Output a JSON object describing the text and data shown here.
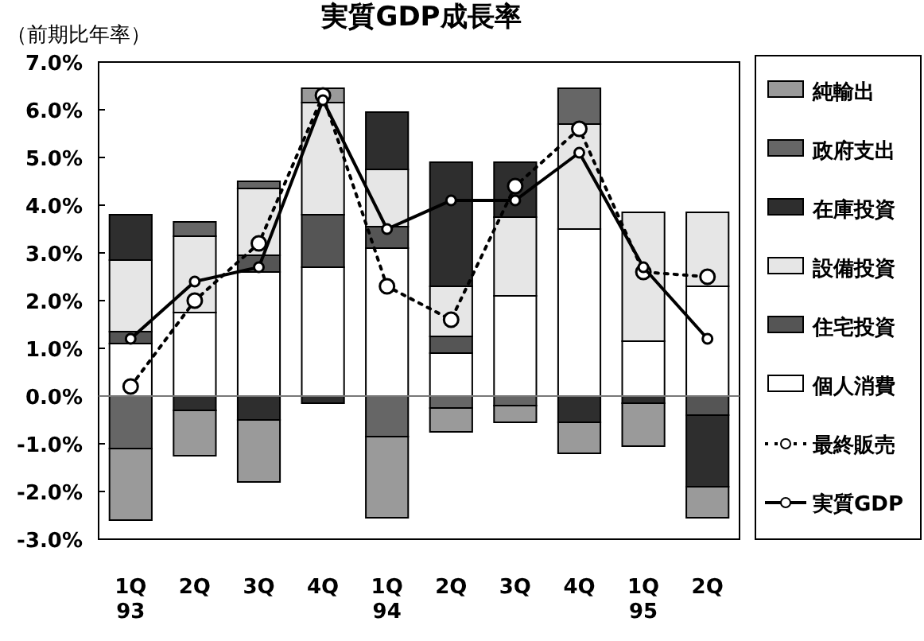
{
  "chart_data": {
    "type": "bar",
    "stacked": true,
    "title": "実質GDP成長率",
    "ylabel": "（前期比年率）",
    "categories": [
      "1Q\n93",
      "2Q",
      "3Q",
      "4Q",
      "1Q\n94",
      "2Q",
      "3Q",
      "4Q",
      "1Q\n95",
      "2Q"
    ],
    "ylim": [
      -3,
      7
    ],
    "yticks": [
      {
        "value": -3,
        "label": "-3.0%"
      },
      {
        "value": -2,
        "label": "-2.0%"
      },
      {
        "value": -1,
        "label": "-1.0%"
      },
      {
        "value": 0,
        "label": "0.0%"
      },
      {
        "value": 1,
        "label": "1.0%"
      },
      {
        "value": 2,
        "label": "2.0%"
      },
      {
        "value": 3,
        "label": "3.0%"
      },
      {
        "value": 4,
        "label": "4.0%"
      },
      {
        "value": 5,
        "label": "5.0%"
      },
      {
        "value": 6,
        "label": "6.0%"
      },
      {
        "value": 7,
        "label": "7.0%"
      }
    ],
    "legend": "right",
    "series": [
      {
        "name": "個人消費",
        "color": "#ffffff",
        "values": [
          1.1,
          1.75,
          2.6,
          2.7,
          3.1,
          0.9,
          2.1,
          3.5,
          1.15,
          2.3
        ]
      },
      {
        "name": "住宅投資",
        "color": "#555555",
        "values": [
          0.25,
          null,
          0.35,
          1.1,
          0.45,
          0.35,
          null,
          null,
          null,
          -0.4
        ]
      },
      {
        "name": "設備投資",
        "color": "#e6e6e6",
        "values": [
          1.5,
          1.6,
          1.4,
          2.35,
          1.2,
          1.05,
          1.65,
          2.2,
          2.7,
          1.55
        ]
      },
      {
        "name": "在庫投資",
        "color": "#2e2e2e",
        "values": [
          0.95,
          -0.3,
          -0.5,
          -0.15,
          1.2,
          2.6,
          1.15,
          -0.55,
          -0.15,
          -1.5
        ]
      },
      {
        "name": "政府支出",
        "color": "#666666",
        "values": [
          -1.1,
          0.3,
          0.15,
          null,
          -0.85,
          -0.25,
          -0.2,
          0.75,
          null,
          null
        ]
      },
      {
        "name": "純輸出",
        "color": "#9a9a9a",
        "values": [
          -1.5,
          -0.95,
          -1.3,
          0.3,
          -1.7,
          -0.5,
          -0.35,
          -0.65,
          -0.9,
          -0.65
        ]
      },
      {
        "name": "最終販売",
        "type": "line",
        "color": "#000000",
        "line_style": "dotted",
        "marker": "circle",
        "values": [
          0.2,
          2.0,
          3.2,
          6.3,
          2.3,
          1.6,
          4.4,
          5.6,
          2.6,
          2.5
        ]
      },
      {
        "name": "実質GDP",
        "type": "line",
        "color": "#000000",
        "line_style": "solid",
        "marker": "circle",
        "values": [
          1.2,
          2.4,
          2.7,
          6.2,
          3.5,
          4.1,
          4.1,
          5.1,
          2.7,
          1.2
        ]
      }
    ]
  }
}
